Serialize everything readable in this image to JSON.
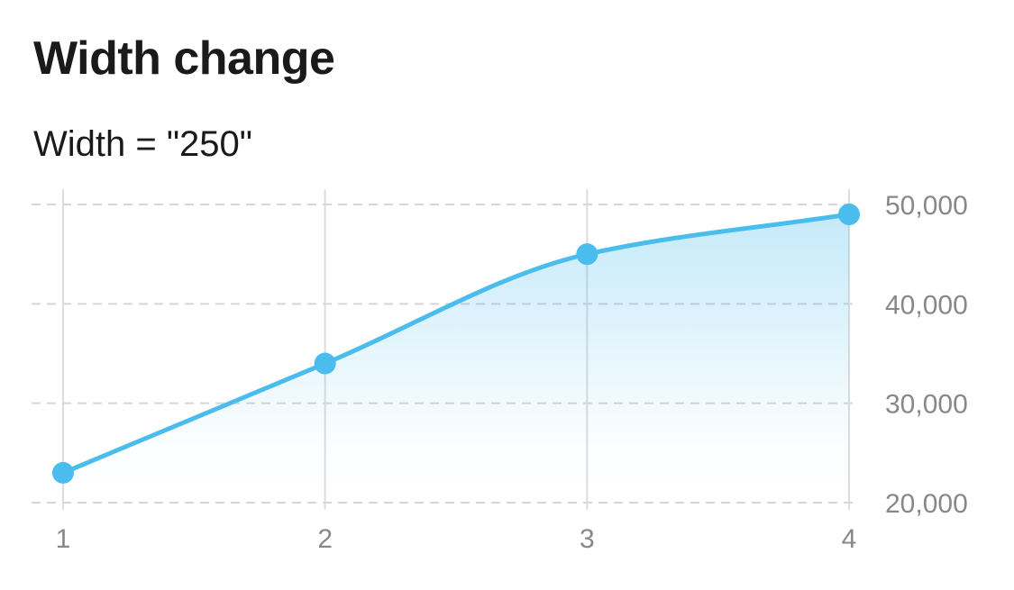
{
  "chart_data": {
    "type": "area",
    "title": "Width change",
    "subtitle": "Width = \"250\"",
    "x": [
      1,
      2,
      3,
      4
    ],
    "series": [
      {
        "values": [
          23000,
          34000,
          45000,
          49000
        ],
        "color": "#4bbcee"
      }
    ],
    "x_ticks": [
      "1",
      "2",
      "3",
      "4"
    ],
    "y_ticks": [
      20000,
      30000,
      40000,
      50000
    ],
    "y_tick_labels": [
      "20,000",
      "30,000",
      "40,000",
      "50,000"
    ],
    "ylim": [
      20000,
      50000
    ],
    "xlim": [
      1,
      4
    ],
    "grid": {
      "vertical": true,
      "horizontal_dashed": true
    },
    "y_axis_side": "right",
    "smooth": true,
    "markers": true,
    "fill_gradient": true
  }
}
